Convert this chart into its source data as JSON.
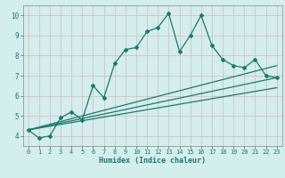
{
  "xlabel": "Humidex (Indice chaleur)",
  "background_color": "#d4eded",
  "grid_color": "#b8d8d8",
  "line_color": "#1a7a6a",
  "xlim": [
    -0.5,
    23.5
  ],
  "ylim": [
    3.5,
    10.5
  ],
  "yticks": [
    4,
    5,
    6,
    7,
    8,
    9,
    10
  ],
  "xticks": [
    0,
    1,
    2,
    3,
    4,
    5,
    6,
    7,
    8,
    9,
    10,
    11,
    12,
    13,
    14,
    15,
    16,
    17,
    18,
    19,
    20,
    21,
    22,
    23
  ],
  "series1_x": [
    0,
    1,
    2,
    3,
    4,
    5,
    6,
    7,
    8,
    9,
    10,
    11,
    12,
    13,
    14,
    15,
    16,
    17,
    18,
    19,
    20,
    21,
    22,
    23
  ],
  "series1_y": [
    4.3,
    3.9,
    4.0,
    4.9,
    5.2,
    4.8,
    6.5,
    5.9,
    7.6,
    8.3,
    8.4,
    9.2,
    9.4,
    10.1,
    8.2,
    9.0,
    10.0,
    8.5,
    7.8,
    7.5,
    7.4,
    7.8,
    7.0,
    6.9
  ],
  "series2_x": [
    0,
    23
  ],
  "series2_y": [
    4.3,
    7.5
  ],
  "series3_x": [
    0,
    23
  ],
  "series3_y": [
    4.3,
    6.9
  ],
  "series4_x": [
    0,
    23
  ],
  "series4_y": [
    4.3,
    6.4
  ]
}
